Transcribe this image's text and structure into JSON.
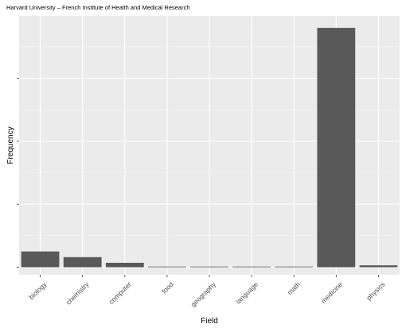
{
  "chart_data": {
    "type": "bar",
    "title": "Harvard University – French Institute of Health and Medical Research",
    "xlabel": "Field",
    "ylabel": "Frequency",
    "categories": [
      "biology",
      "chemistry",
      "computer",
      "food",
      "geography",
      "language",
      "math",
      "medicine",
      "physics"
    ],
    "values": [
      25,
      16,
      7,
      1,
      1,
      1,
      1,
      380,
      3
    ],
    "ylim": [
      -12,
      399
    ],
    "y_ticks": [
      0,
      100,
      200,
      300
    ],
    "y_tick_labels_visible": false,
    "grid": true,
    "legend": "none",
    "colors": {
      "bar": "#595959",
      "panel_background": "#ebebeb",
      "grid_major": "#ffffff"
    }
  }
}
